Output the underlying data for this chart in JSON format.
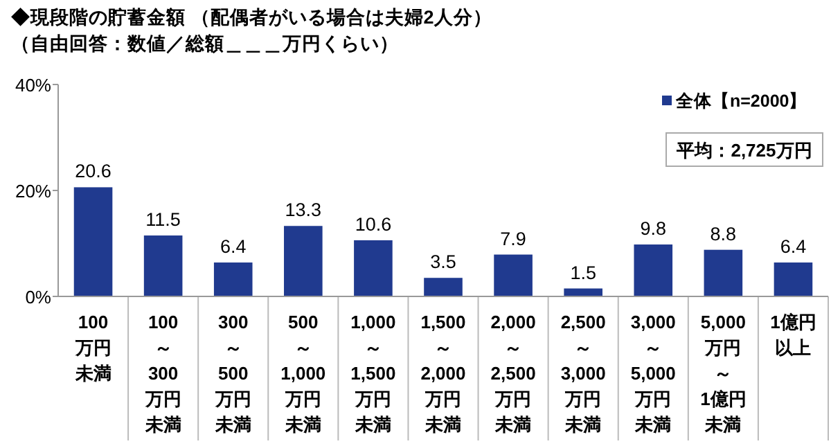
{
  "chart_data": {
    "type": "bar",
    "title": "◆現段階の貯蓄金額 （配偶者がいる場合は夫婦2人分）",
    "subtitle": "（自由回答：数値／総額＿＿＿万円くらい）",
    "categories": [
      "100万円未満",
      "100～300万円未満",
      "300～500万円未満",
      "500～1,000万円未満",
      "1,000～1,500万円未満",
      "1,500～2,000万円未満",
      "2,000～2,500万円未満",
      "2,500～3,000万円未満",
      "3,000～5,000万円未満",
      "5,000万円～1億円未満",
      "1億円以上"
    ],
    "series": [
      {
        "name": "全体【n=2000】",
        "color": "#203a8f",
        "values": [
          20.6,
          11.5,
          6.4,
          13.3,
          10.6,
          3.5,
          7.9,
          1.5,
          9.8,
          8.8,
          6.4
        ]
      }
    ],
    "data_labels": true,
    "ylim": [
      0,
      40
    ],
    "yticks": [
      {
        "value": 0,
        "label": "0%"
      },
      {
        "value": 20,
        "label": "20%"
      },
      {
        "value": 40,
        "label": "40%"
      }
    ],
    "legend": "top right",
    "annotations": [
      "平均：2,725万円"
    ]
  }
}
